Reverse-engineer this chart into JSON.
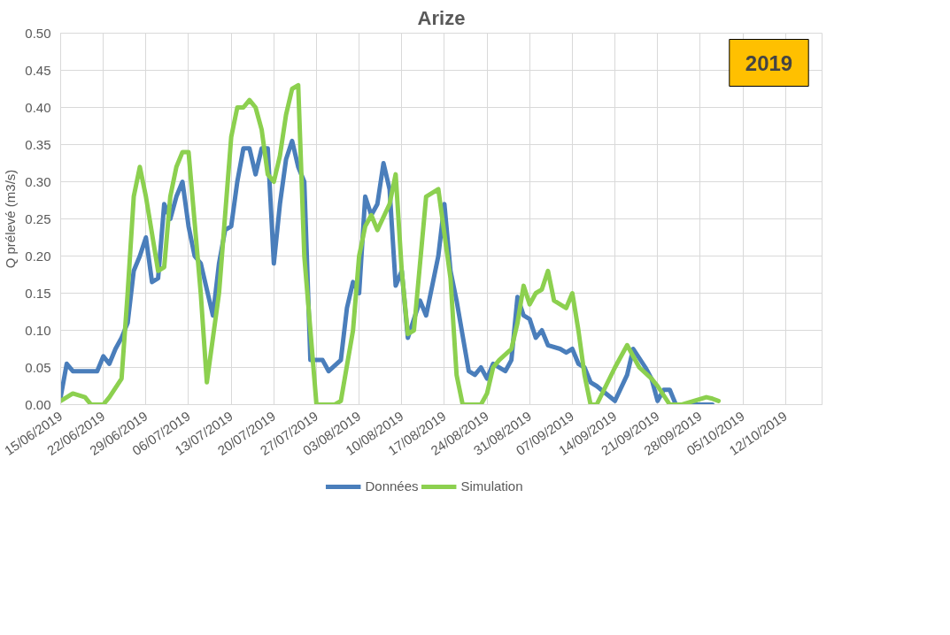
{
  "chart_data": {
    "type": "line",
    "title": "Arize",
    "ylabel": "Q prélevé (m3/s)",
    "annotations": [
      "2019"
    ],
    "xlim": [
      "2019-06-15",
      "2019-10-18"
    ],
    "xticks": [
      {
        "value": "2019-06-15",
        "label": "15/06/2019"
      },
      {
        "value": "2019-06-22",
        "label": "22/06/2019"
      },
      {
        "value": "2019-06-29",
        "label": "29/06/2019"
      },
      {
        "value": "2019-07-06",
        "label": "06/07/2019"
      },
      {
        "value": "2019-07-13",
        "label": "13/07/2019"
      },
      {
        "value": "2019-07-20",
        "label": "20/07/2019"
      },
      {
        "value": "2019-07-27",
        "label": "27/07/2019"
      },
      {
        "value": "2019-08-03",
        "label": "03/08/2019"
      },
      {
        "value": "2019-08-10",
        "label": "10/08/2019"
      },
      {
        "value": "2019-08-17",
        "label": "17/08/2019"
      },
      {
        "value": "2019-08-24",
        "label": "24/08/2019"
      },
      {
        "value": "2019-08-31",
        "label": "31/08/2019"
      },
      {
        "value": "2019-09-07",
        "label": "07/09/2019"
      },
      {
        "value": "2019-09-14",
        "label": "14/09/2019"
      },
      {
        "value": "2019-09-21",
        "label": "21/09/2019"
      },
      {
        "value": "2019-09-28",
        "label": "28/09/2019"
      },
      {
        "value": "2019-10-05",
        "label": "05/10/2019"
      },
      {
        "value": "2019-10-12",
        "label": "12/10/2019"
      }
    ],
    "ylim": [
      0,
      0.5
    ],
    "yticks": [
      {
        "value": 0,
        "label": "0.00"
      },
      {
        "value": 0.05,
        "label": "0.05"
      },
      {
        "value": 0.1,
        "label": "0.10"
      },
      {
        "value": 0.15,
        "label": "0.15"
      },
      {
        "value": 0.2,
        "label": "0.20"
      },
      {
        "value": 0.25,
        "label": "0.25"
      },
      {
        "value": 0.3,
        "label": "0.30"
      },
      {
        "value": 0.35,
        "label": "0.35"
      },
      {
        "value": 0.4,
        "label": "0.40"
      },
      {
        "value": 0.45,
        "label": "0.45"
      },
      {
        "value": 0.5,
        "label": "0.50"
      }
    ],
    "grid": true,
    "legend": "bottom",
    "marker": "none",
    "line_style": "solid",
    "series": [
      {
        "name": "Données",
        "color": "#4a7ebb",
        "x": [
          "2019-06-15",
          "2019-06-16",
          "2019-06-17",
          "2019-06-19",
          "2019-06-21",
          "2019-06-22",
          "2019-06-23",
          "2019-06-24",
          "2019-06-25",
          "2019-06-26",
          "2019-06-27",
          "2019-06-28",
          "2019-06-29",
          "2019-06-30",
          "2019-07-01",
          "2019-07-02",
          "2019-07-03",
          "2019-07-04",
          "2019-07-05",
          "2019-07-06",
          "2019-07-07",
          "2019-07-08",
          "2019-07-10",
          "2019-07-11",
          "2019-07-12",
          "2019-07-13",
          "2019-07-14",
          "2019-07-15",
          "2019-07-16",
          "2019-07-17",
          "2019-07-18",
          "2019-07-19",
          "2019-07-20",
          "2019-07-21",
          "2019-07-22",
          "2019-07-23",
          "2019-07-24",
          "2019-07-25",
          "2019-07-26",
          "2019-07-28",
          "2019-07-29",
          "2019-07-31",
          "2019-08-01",
          "2019-08-02",
          "2019-08-03",
          "2019-08-04",
          "2019-08-05",
          "2019-08-06",
          "2019-08-07",
          "2019-08-08",
          "2019-08-09",
          "2019-08-10",
          "2019-08-11",
          "2019-08-13",
          "2019-08-14",
          "2019-08-16",
          "2019-08-17",
          "2019-08-18",
          "2019-08-19",
          "2019-08-21",
          "2019-08-22",
          "2019-08-23",
          "2019-08-24",
          "2019-08-25",
          "2019-08-27",
          "2019-08-28",
          "2019-08-29",
          "2019-08-30",
          "2019-08-31",
          "2019-09-01",
          "2019-09-02",
          "2019-09-03",
          "2019-09-05",
          "2019-09-06",
          "2019-09-07",
          "2019-09-08",
          "2019-09-09",
          "2019-09-10",
          "2019-09-11",
          "2019-09-14",
          "2019-09-16",
          "2019-09-17",
          "2019-09-19",
          "2019-09-20",
          "2019-09-21",
          "2019-09-22",
          "2019-09-23",
          "2019-09-24",
          "2019-09-30"
        ],
        "values": [
          0.01,
          0.055,
          0.045,
          0.045,
          0.045,
          0.065,
          0.055,
          0.075,
          0.09,
          0.11,
          0.18,
          0.2,
          0.225,
          0.165,
          0.17,
          0.27,
          0.25,
          0.28,
          0.3,
          0.24,
          0.2,
          0.19,
          0.12,
          0.19,
          0.235,
          0.24,
          0.3,
          0.345,
          0.345,
          0.31,
          0.345,
          0.345,
          0.19,
          0.27,
          0.33,
          0.355,
          0.32,
          0.3,
          0.06,
          0.06,
          0.045,
          0.06,
          0.13,
          0.165,
          0.15,
          0.28,
          0.255,
          0.27,
          0.325,
          0.29,
          0.16,
          0.18,
          0.09,
          0.14,
          0.12,
          0.2,
          0.27,
          0.18,
          0.14,
          0.045,
          0.04,
          0.05,
          0.035,
          0.055,
          0.045,
          0.06,
          0.145,
          0.12,
          0.115,
          0.09,
          0.1,
          0.08,
          0.075,
          0.07,
          0.075,
          0.055,
          0.05,
          0.03,
          0.025,
          0.005,
          0.04,
          0.075,
          0.05,
          0.035,
          0.005,
          0.02,
          0.02,
          0,
          0
        ]
      },
      {
        "name": "Simulation",
        "color": "#8cd04f",
        "x": [
          "2019-06-15",
          "2019-06-17",
          "2019-06-19",
          "2019-06-20",
          "2019-06-22",
          "2019-06-23",
          "2019-06-25",
          "2019-06-26",
          "2019-06-27",
          "2019-06-28",
          "2019-06-29",
          "2019-07-01",
          "2019-07-02",
          "2019-07-03",
          "2019-07-04",
          "2019-07-05",
          "2019-07-06",
          "2019-07-08",
          "2019-07-09",
          "2019-07-11",
          "2019-07-13",
          "2019-07-14",
          "2019-07-15",
          "2019-07-16",
          "2019-07-17",
          "2019-07-18",
          "2019-07-19",
          "2019-07-20",
          "2019-07-21",
          "2019-07-22",
          "2019-07-23",
          "2019-07-24",
          "2019-07-25",
          "2019-07-27",
          "2019-07-30",
          "2019-07-31",
          "2019-08-02",
          "2019-08-03",
          "2019-08-04",
          "2019-08-05",
          "2019-08-06",
          "2019-08-08",
          "2019-08-09",
          "2019-08-10",
          "2019-08-11",
          "2019-08-12",
          "2019-08-14",
          "2019-08-16",
          "2019-08-18",
          "2019-08-19",
          "2019-08-20",
          "2019-08-23",
          "2019-08-24",
          "2019-08-25",
          "2019-08-26",
          "2019-08-28",
          "2019-08-29",
          "2019-08-30",
          "2019-08-31",
          "2019-09-01",
          "2019-09-02",
          "2019-09-03",
          "2019-09-04",
          "2019-09-06",
          "2019-09-07",
          "2019-09-08",
          "2019-09-09",
          "2019-09-10",
          "2019-09-11",
          "2019-09-14",
          "2019-09-16",
          "2019-09-18",
          "2019-09-20",
          "2019-09-21",
          "2019-09-23",
          "2019-09-25",
          "2019-09-29",
          "2019-09-30",
          "2019-10-01"
        ],
        "values": [
          0.005,
          0.015,
          0.01,
          0,
          0,
          0.01,
          0.035,
          0.15,
          0.28,
          0.32,
          0.28,
          0.18,
          0.185,
          0.28,
          0.32,
          0.34,
          0.34,
          0.15,
          0.03,
          0.15,
          0.36,
          0.4,
          0.4,
          0.41,
          0.4,
          0.37,
          0.31,
          0.3,
          0.335,
          0.39,
          0.425,
          0.43,
          0.2,
          0,
          0,
          0.005,
          0.1,
          0.2,
          0.24,
          0.255,
          0.235,
          0.27,
          0.31,
          0.18,
          0.095,
          0.1,
          0.28,
          0.29,
          0.17,
          0.04,
          0,
          0,
          0.015,
          0.05,
          0.06,
          0.075,
          0.11,
          0.16,
          0.135,
          0.15,
          0.155,
          0.18,
          0.14,
          0.13,
          0.15,
          0.1,
          0.04,
          0,
          0,
          0.05,
          0.08,
          0.05,
          0.035,
          0.025,
          0,
          0,
          0.01,
          0.008,
          0.005
        ]
      }
    ]
  }
}
